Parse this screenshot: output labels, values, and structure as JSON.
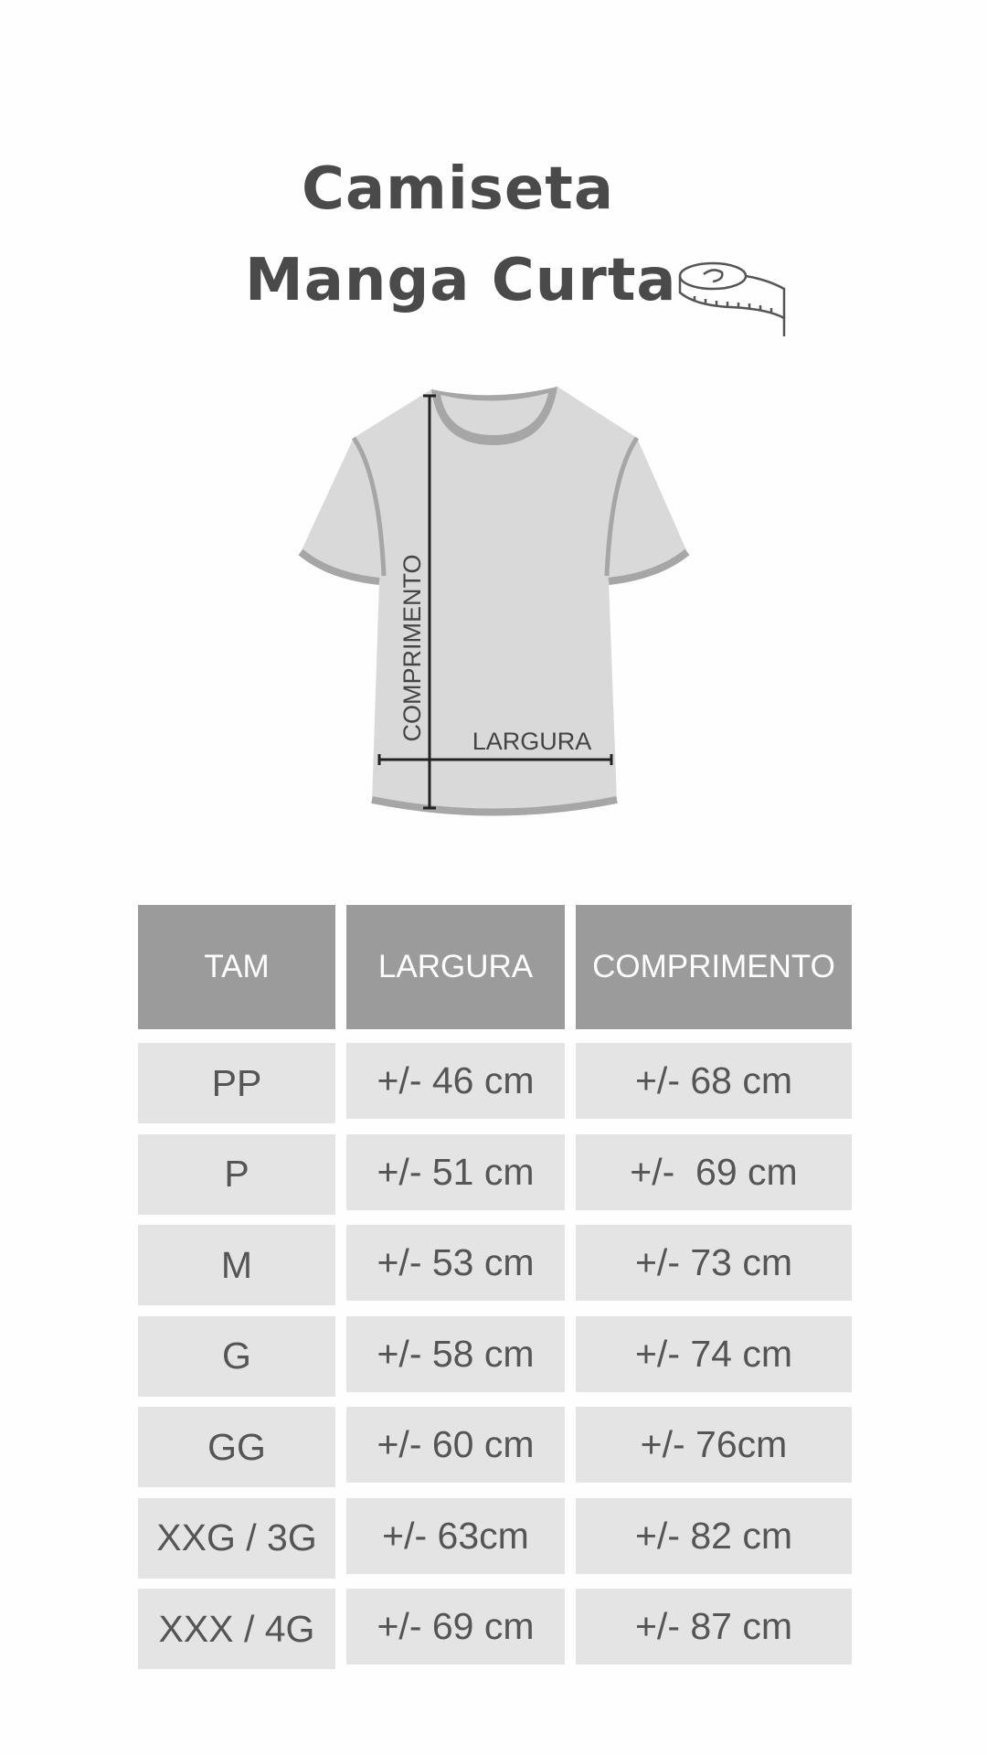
{
  "title": {
    "line1": "Camiseta",
    "line2": "Manga Curta",
    "icon": "measuring-tape-icon"
  },
  "diagram": {
    "length_label": "COMPRIMENTO",
    "width_label": "LARGURA"
  },
  "colors": {
    "header_bg": "#9b9b9b",
    "cell_bg": "#e4e4e4",
    "text": "#555555",
    "shirt": "#d9d9d9",
    "shirt_trim": "#a6a6a6"
  },
  "table": {
    "headers": [
      "TAM",
      "LARGURA",
      "COMPRIMENTO"
    ],
    "rows": [
      [
        "PP",
        "+/- 46 cm",
        "+/- 68 cm"
      ],
      [
        "P",
        "+/- 51 cm",
        "+/-  69 cm"
      ],
      [
        "M",
        "+/- 53 cm",
        "+/- 73 cm"
      ],
      [
        "G",
        "+/- 58 cm",
        "+/- 74 cm"
      ],
      [
        "GG",
        "+/- 60 cm",
        "+/- 76cm"
      ],
      [
        "XXG / 3G",
        "+/- 63cm",
        "+/- 82 cm"
      ],
      [
        "XXX / 4G",
        "+/- 69 cm",
        "+/- 87 cm"
      ]
    ]
  }
}
